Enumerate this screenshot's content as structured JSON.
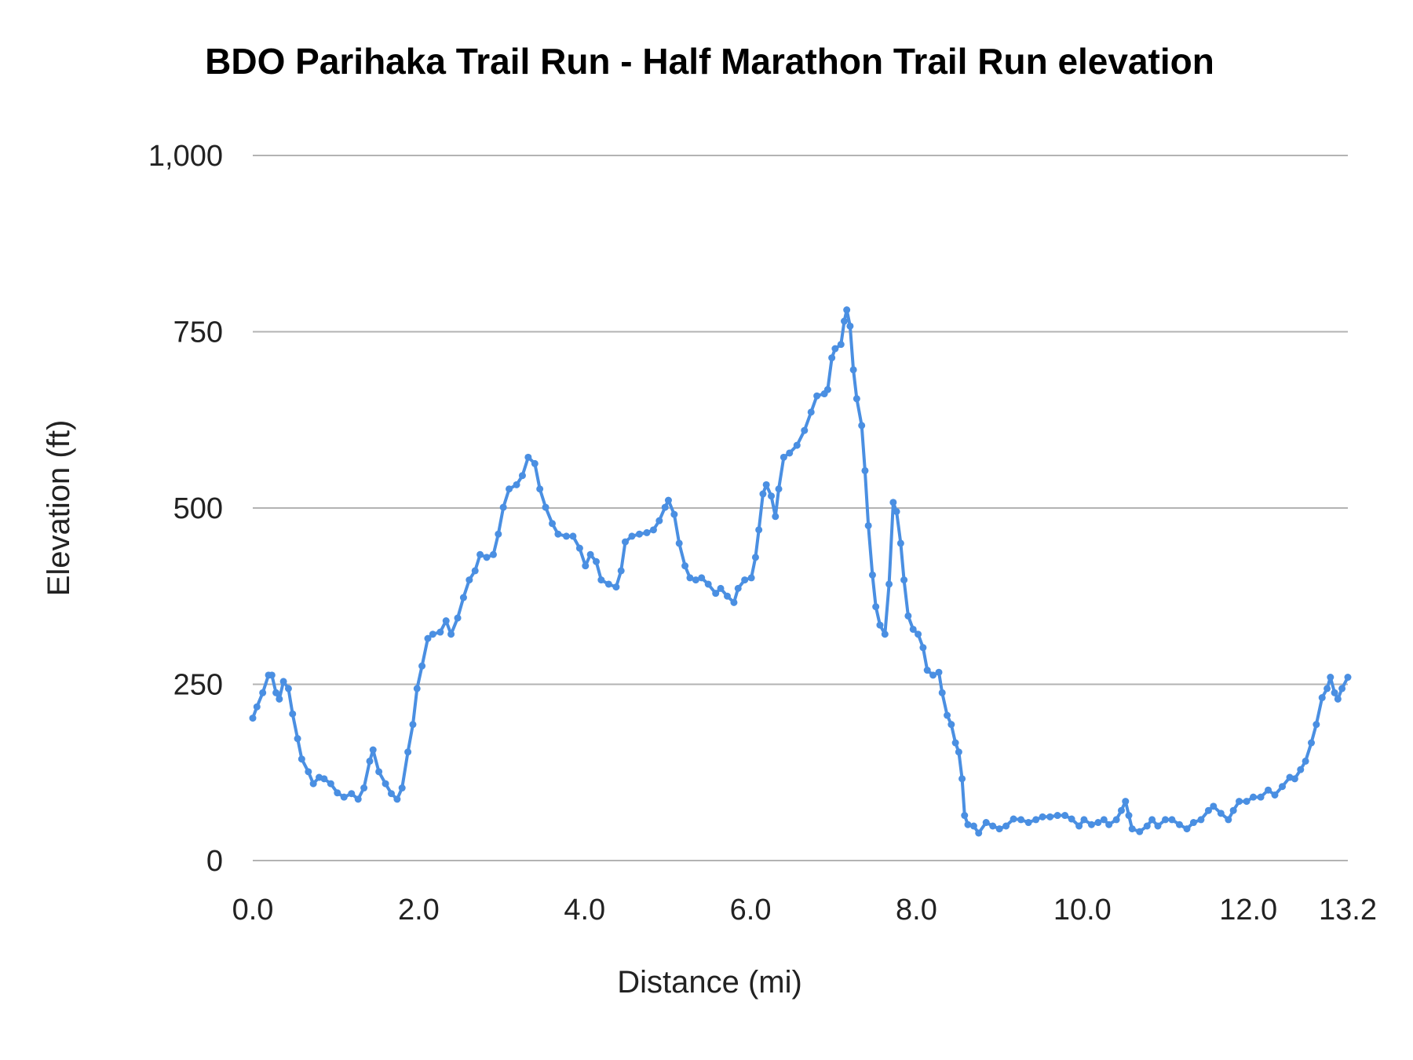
{
  "chart_data": {
    "type": "line",
    "title": "BDO Parihaka Trail Run - Half Marathon Trail Run elevation",
    "xlabel": "Distance (mi)",
    "ylabel": "Elevation (ft)",
    "xlim": [
      0,
      13.2
    ],
    "ylim": [
      0,
      1000
    ],
    "x_ticks": [
      "0.0",
      "2.0",
      "4.0",
      "6.0",
      "8.0",
      "10.0",
      "12.0",
      "13.2"
    ],
    "x_tick_values": [
      0,
      2,
      4,
      6,
      8,
      10,
      12,
      13.2
    ],
    "y_ticks": [
      "0",
      "250",
      "500",
      "750",
      "1,000"
    ],
    "y_tick_values": [
      0,
      250,
      500,
      750,
      1000
    ],
    "grid": "horizontal",
    "legend": "none",
    "series_color": "#4a8fe2",
    "grid_color": "#b3b3b3",
    "series": [
      {
        "x": [
          0,
          0.05,
          0.12,
          0.19,
          0.23,
          0.28,
          0.32,
          0.37,
          0.43,
          0.48,
          0.54,
          0.59,
          0.67,
          0.73,
          0.8,
          0.86,
          0.94,
          1.02,
          1.1,
          1.19,
          1.27,
          1.34,
          1.41,
          1.45,
          1.52,
          1.6,
          1.67,
          1.74,
          1.8,
          1.87,
          1.93,
          1.98,
          2.04,
          2.11,
          2.17,
          2.26,
          2.33,
          2.39,
          2.47,
          2.54,
          2.61,
          2.68,
          2.74,
          2.82,
          2.9,
          2.96,
          3.02,
          3.09,
          3.18,
          3.25,
          3.32,
          3.4,
          3.46,
          3.53,
          3.61,
          3.68,
          3.78,
          3.86,
          3.94,
          4.01,
          4.07,
          4.14,
          4.2,
          4.29,
          4.38,
          4.44,
          4.49,
          4.57,
          4.66,
          4.75,
          4.83,
          4.9,
          4.97,
          5.01,
          5.08,
          5.14,
          5.21,
          5.27,
          5.34,
          5.41,
          5.49,
          5.58,
          5.64,
          5.72,
          5.8,
          5.85,
          5.93,
          6.01,
          6.06,
          6.1,
          6.15,
          6.19,
          6.25,
          6.3,
          6.34,
          6.4,
          6.47,
          6.56,
          6.65,
          6.73,
          6.8,
          6.89,
          6.93,
          6.98,
          7.02,
          7.09,
          7.13,
          7.16,
          7.2,
          7.24,
          7.28,
          7.34,
          7.38,
          7.42,
          7.47,
          7.51,
          7.56,
          7.62,
          7.67,
          7.72,
          7.76,
          7.81,
          7.85,
          7.9,
          7.96,
          8.02,
          8.08,
          8.13,
          8.2,
          8.27,
          8.31,
          8.37,
          8.42,
          8.47,
          8.51,
          8.55,
          8.58,
          8.62,
          8.69,
          8.75,
          8.84,
          8.92,
          9,
          9.08,
          9.17,
          9.26,
          9.35,
          9.44,
          9.52,
          9.61,
          9.7,
          9.79,
          9.87,
          9.96,
          10.02,
          10.11,
          10.19,
          10.26,
          10.32,
          10.41,
          10.47,
          10.52,
          10.56,
          10.6,
          10.69,
          10.78,
          10.84,
          10.91,
          11,
          11.08,
          11.17,
          11.26,
          11.34,
          11.43,
          11.52,
          11.58,
          11.67,
          11.76,
          11.82,
          11.89,
          11.98,
          12.06,
          12.15,
          12.24,
          12.32,
          12.41,
          12.5,
          12.56,
          12.63,
          12.69,
          12.76,
          12.82,
          12.89,
          12.95,
          12.99,
          13.04,
          13.08,
          13.13,
          13.2
        ],
        "y": [
          202,
          218,
          238,
          263,
          263,
          238,
          229,
          254,
          244,
          208,
          173,
          144,
          126,
          109,
          118,
          116,
          109,
          96,
          90,
          95,
          87,
          103,
          141,
          157,
          126,
          109,
          95,
          87,
          103,
          154,
          193,
          244,
          276,
          315,
          321,
          324,
          340,
          321,
          344,
          373,
          398,
          411,
          434,
          430,
          434,
          463,
          501,
          527,
          533,
          546,
          572,
          563,
          527,
          501,
          478,
          463,
          460,
          460,
          443,
          418,
          434,
          424,
          398,
          392,
          388,
          411,
          452,
          460,
          463,
          465,
          469,
          482,
          501,
          511,
          491,
          450,
          418,
          401,
          398,
          401,
          392,
          379,
          386,
          375,
          366,
          386,
          398,
          401,
          430,
          469,
          520,
          533,
          517,
          488,
          527,
          572,
          578,
          589,
          610,
          636,
          659,
          662,
          668,
          713,
          726,
          732,
          765,
          781,
          758,
          696,
          655,
          617,
          553,
          475,
          405,
          360,
          334,
          321,
          392,
          508,
          495,
          450,
          398,
          347,
          328,
          321,
          302,
          270,
          263,
          267,
          238,
          206,
          193,
          167,
          154,
          116,
          64,
          51,
          49,
          39,
          54,
          49,
          45,
          49,
          59,
          58,
          54,
          58,
          62,
          62,
          64,
          64,
          59,
          49,
          58,
          51,
          54,
          58,
          51,
          58,
          71,
          84,
          64,
          45,
          41,
          49,
          58,
          49,
          58,
          58,
          51,
          45,
          54,
          58,
          71,
          77,
          67,
          58,
          71,
          84,
          84,
          90,
          90,
          100,
          93,
          105,
          118,
          116,
          129,
          141,
          167,
          193,
          231,
          244,
          260,
          238,
          229,
          244,
          260
        ]
      }
    ]
  }
}
